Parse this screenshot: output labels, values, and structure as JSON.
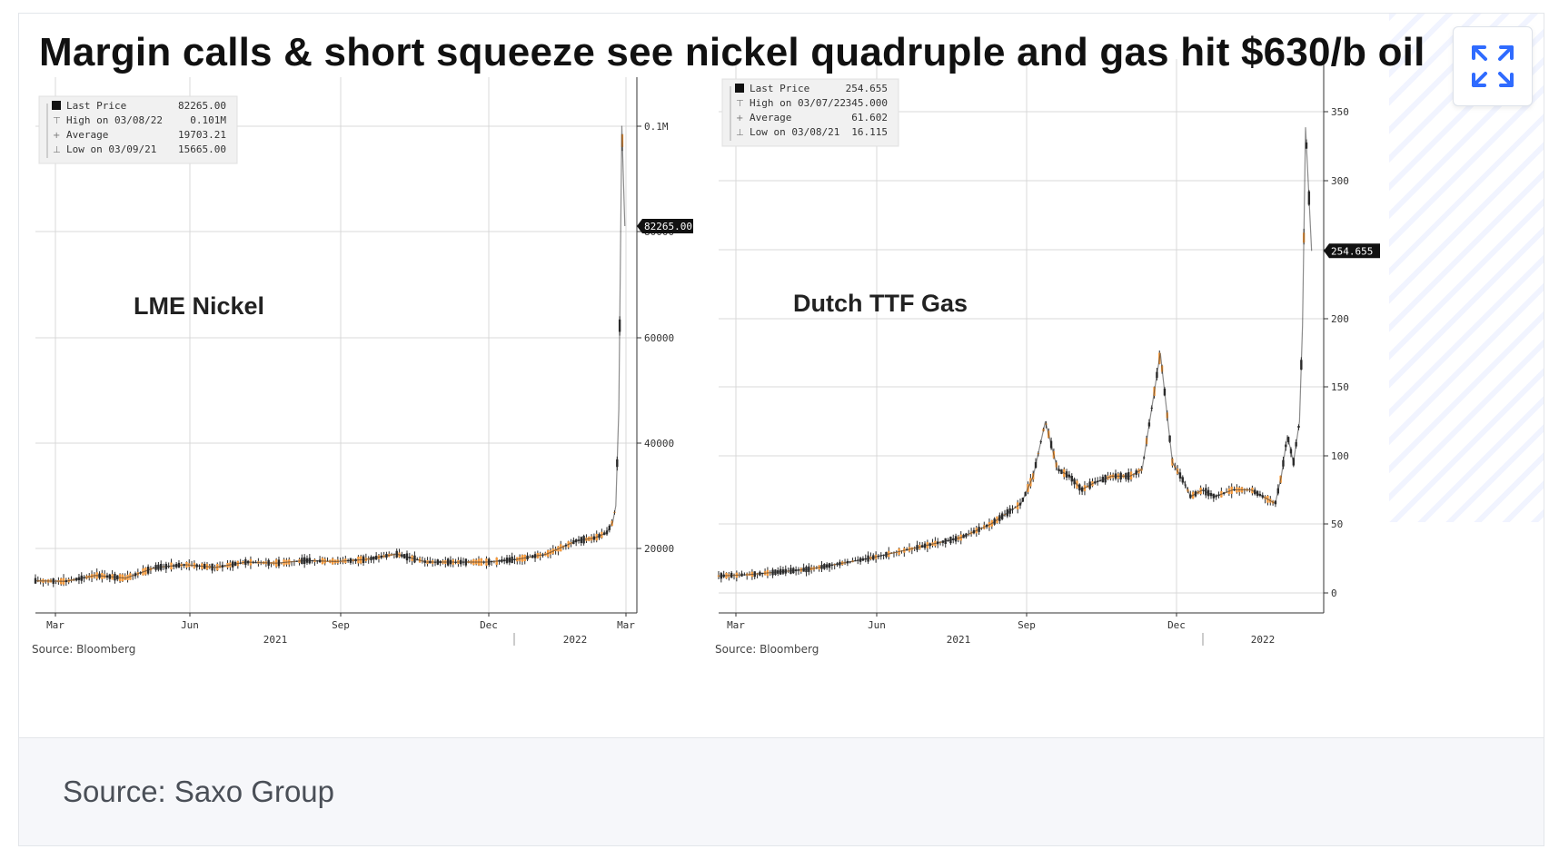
{
  "title": "Margin calls & short squeeze see nickel quadruple and gas hit $630/b oil",
  "footer": {
    "source": "Source: Saxo Group"
  },
  "expand_icon": "expand-arrows-icon",
  "colors": {
    "up_candle": "#f59a3c",
    "down_candle": "#2b2b2b",
    "grid": "#d8d8d8",
    "label_bg": "#111111"
  },
  "chart_data": [
    {
      "type": "line",
      "label": "LME Nickel",
      "source": "Source: Bloomberg",
      "x_ticks": [
        "Mar",
        "Jun",
        "Sep",
        "Dec",
        "Mar"
      ],
      "x_years": [
        "2021",
        "2022"
      ],
      "y_ticks": [
        "0.1M",
        "80000",
        "60000",
        "40000",
        "20000"
      ],
      "ylim": [
        10000,
        105000
      ],
      "grid": true,
      "legend": [
        {
          "label": "Last Price",
          "value": "82265.00"
        },
        {
          "label": "High on 03/08/22",
          "value": "0.101M"
        },
        {
          "label": "Average",
          "value": "19703.21"
        },
        {
          "label": "Low on 03/09/21",
          "value": "15665.00"
        }
      ],
      "last_price_label": "82265.00",
      "last_price": 82265,
      "x": [
        0,
        0.05,
        0.1,
        0.15,
        0.2,
        0.25,
        0.3,
        0.35,
        0.4,
        0.45,
        0.5,
        0.55,
        0.6,
        0.65,
        0.7,
        0.75,
        0.8,
        0.85,
        0.9,
        0.93,
        0.95,
        0.96,
        0.965,
        0.97,
        0.975,
        0.98
      ],
      "values": [
        16000,
        15900,
        17000,
        16500,
        18500,
        19000,
        18500,
        19500,
        19300,
        19800,
        19600,
        20000,
        21000,
        19500,
        19500,
        19500,
        20000,
        21000,
        23500,
        24000,
        25000,
        27000,
        30000,
        48000,
        101000,
        82265
      ]
    },
    {
      "type": "line",
      "label": "Dutch TTF Gas",
      "source": "Source: Bloomberg",
      "x_ticks": [
        "Mar",
        "Jun",
        "Sep",
        "Dec"
      ],
      "x_years": [
        "2021",
        "2022"
      ],
      "y_ticks": [
        "350",
        "300",
        "250",
        "200",
        "150",
        "100",
        "50",
        "0"
      ],
      "ylim": [
        -10,
        375
      ],
      "grid": true,
      "legend": [
        {
          "label": "Last Price",
          "value": "254.655"
        },
        {
          "label": "High on 03/07/22",
          "value": "345.000"
        },
        {
          "label": "Average",
          "value": "61.602"
        },
        {
          "label": "Low on 03/08/21",
          "value": "16.115"
        }
      ],
      "last_price_label": "254.655",
      "last_price": 254.655,
      "x": [
        0,
        0.05,
        0.1,
        0.15,
        0.2,
        0.25,
        0.3,
        0.35,
        0.4,
        0.45,
        0.5,
        0.52,
        0.54,
        0.56,
        0.58,
        0.6,
        0.62,
        0.65,
        0.68,
        0.7,
        0.73,
        0.75,
        0.77,
        0.78,
        0.8,
        0.82,
        0.85,
        0.88,
        0.9,
        0.92,
        0.93,
        0.94,
        0.95,
        0.96,
        0.965,
        0.97,
        0.975,
        0.98
      ],
      "values": [
        17,
        18,
        20,
        22,
        26,
        30,
        35,
        40,
        45,
        55,
        70,
        90,
        130,
        95,
        90,
        80,
        85,
        90,
        90,
        95,
        180,
        100,
        85,
        75,
        80,
        75,
        80,
        80,
        75,
        70,
        90,
        120,
        100,
        130,
        200,
        345,
        300,
        254.655
      ]
    }
  ]
}
